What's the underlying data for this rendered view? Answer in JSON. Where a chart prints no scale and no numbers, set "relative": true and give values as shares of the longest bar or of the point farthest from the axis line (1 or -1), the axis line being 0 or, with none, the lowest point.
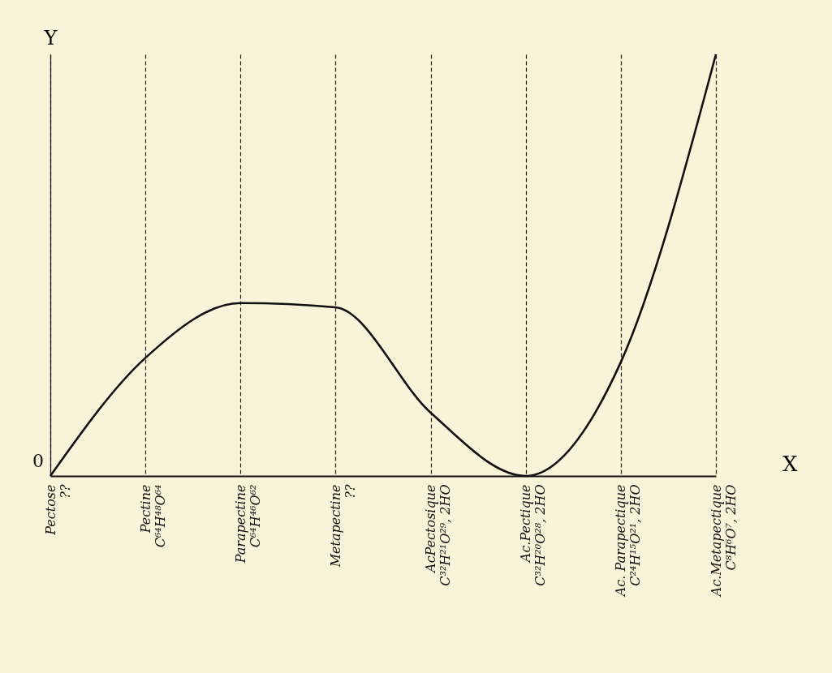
{
  "chart_data": {
    "type": "line",
    "relative": true,
    "xlabel": "X",
    "ylabel": "Y",
    "categories": [
      "Pectose\n??",
      "Pectine\nC⁶⁴H⁴⁸O⁶⁴",
      "Parapectine\nC⁶⁴H⁴⁶O⁶²",
      "Metapectine\n??",
      "AcPectosique\nC³²H²¹O²⁹, 2HO",
      "Ac.Pectique\nC³²H²⁰O²⁸, 2HO",
      "Ac. Parapectique\nC²⁴H¹⁵O²¹, 2HO",
      "Ac.Metapectique\nC⁸H⁶O⁷, 2HO"
    ],
    "series": [
      {
        "color": "#111111",
        "values": [
          0,
          0.28,
          0.41,
          0.4,
          0.15,
          0,
          0.27,
          1
        ]
      }
    ],
    "annotations": [
      "0"
    ],
    "grid": "x",
    "marker": "none",
    "line_style": "solid"
  }
}
